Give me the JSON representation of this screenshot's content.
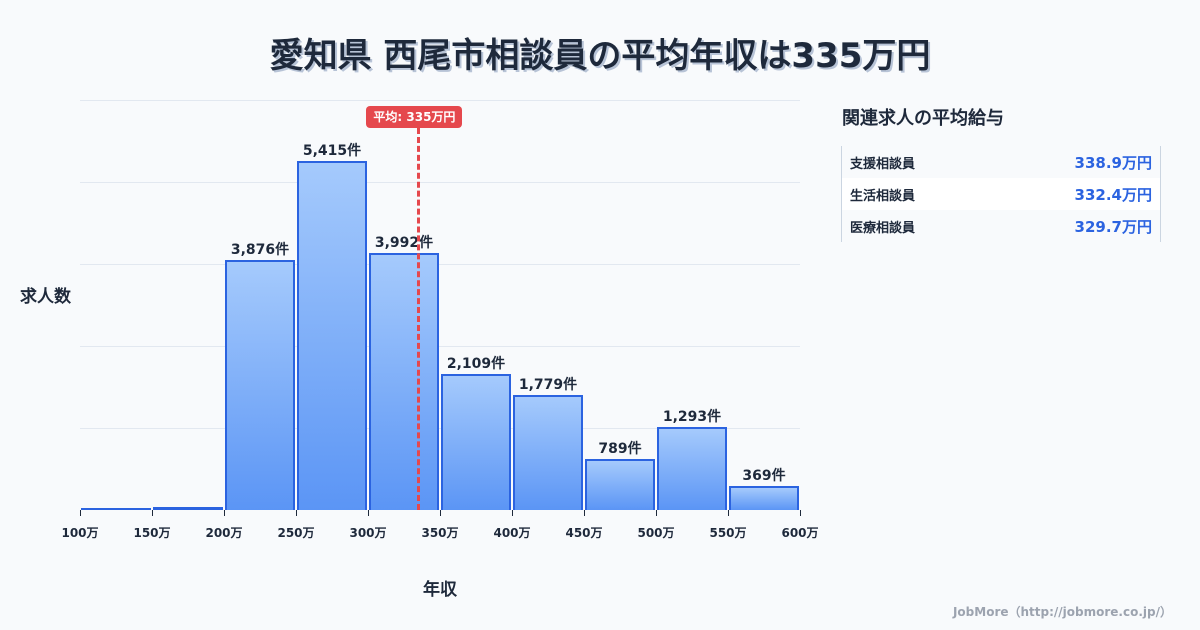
{
  "title": "愛知県 西尾市相談員の平均年収は335万円",
  "y_axis_label": "求人数",
  "x_axis_label": "年収",
  "average": {
    "label": "平均: 335万円",
    "value": 335
  },
  "x_ticks": [
    "100万",
    "150万",
    "200万",
    "250万",
    "300万",
    "350万",
    "400万",
    "450万",
    "500万",
    "550万",
    "600万"
  ],
  "bar_labels": [
    "",
    "",
    "3,876件",
    "5,415件",
    "3,992件",
    "2,109件",
    "1,779件",
    "789件",
    "1,293件",
    "369件"
  ],
  "sidebar": {
    "title": "関連求人の平均給与",
    "rows": [
      {
        "name": "支援相談員",
        "value": "338.9万円"
      },
      {
        "name": "生活相談員",
        "value": "332.4万円"
      },
      {
        "name": "医療相談員",
        "value": "329.7万円"
      }
    ]
  },
  "footer": "JobMore（http://jobmore.co.jp/）",
  "colors": {
    "bar_fill_top": "#a5cafc",
    "bar_fill_bottom": "#5b95f5",
    "bar_border": "#2b63e0",
    "average_line": "#e5484d",
    "accent_value": "#2b63e0"
  },
  "chart_data": {
    "type": "bar",
    "title": "愛知県 西尾市相談員の平均年収は335万円",
    "xlabel": "年収",
    "ylabel": "求人数",
    "categories": [
      "100-150万",
      "150-200万",
      "200-250万",
      "250-300万",
      "300-350万",
      "350-400万",
      "400-450万",
      "450-500万",
      "500-550万",
      "550-600万"
    ],
    "values": [
      30,
      50,
      3876,
      5415,
      3992,
      2109,
      1779,
      789,
      1293,
      369
    ],
    "x_ticks": [
      100,
      150,
      200,
      250,
      300,
      350,
      400,
      450,
      500,
      550,
      600
    ],
    "xlim": [
      100,
      600
    ],
    "ylim": [
      0,
      6350
    ],
    "grid": true,
    "annotations": [
      {
        "type": "vline",
        "x": 335,
        "label": "平均: 335万円"
      }
    ],
    "related": [
      {
        "name": "支援相談員",
        "value": 338.9
      },
      {
        "name": "生活相談員",
        "value": 332.4
      },
      {
        "name": "医療相談員",
        "value": 329.7
      }
    ]
  }
}
